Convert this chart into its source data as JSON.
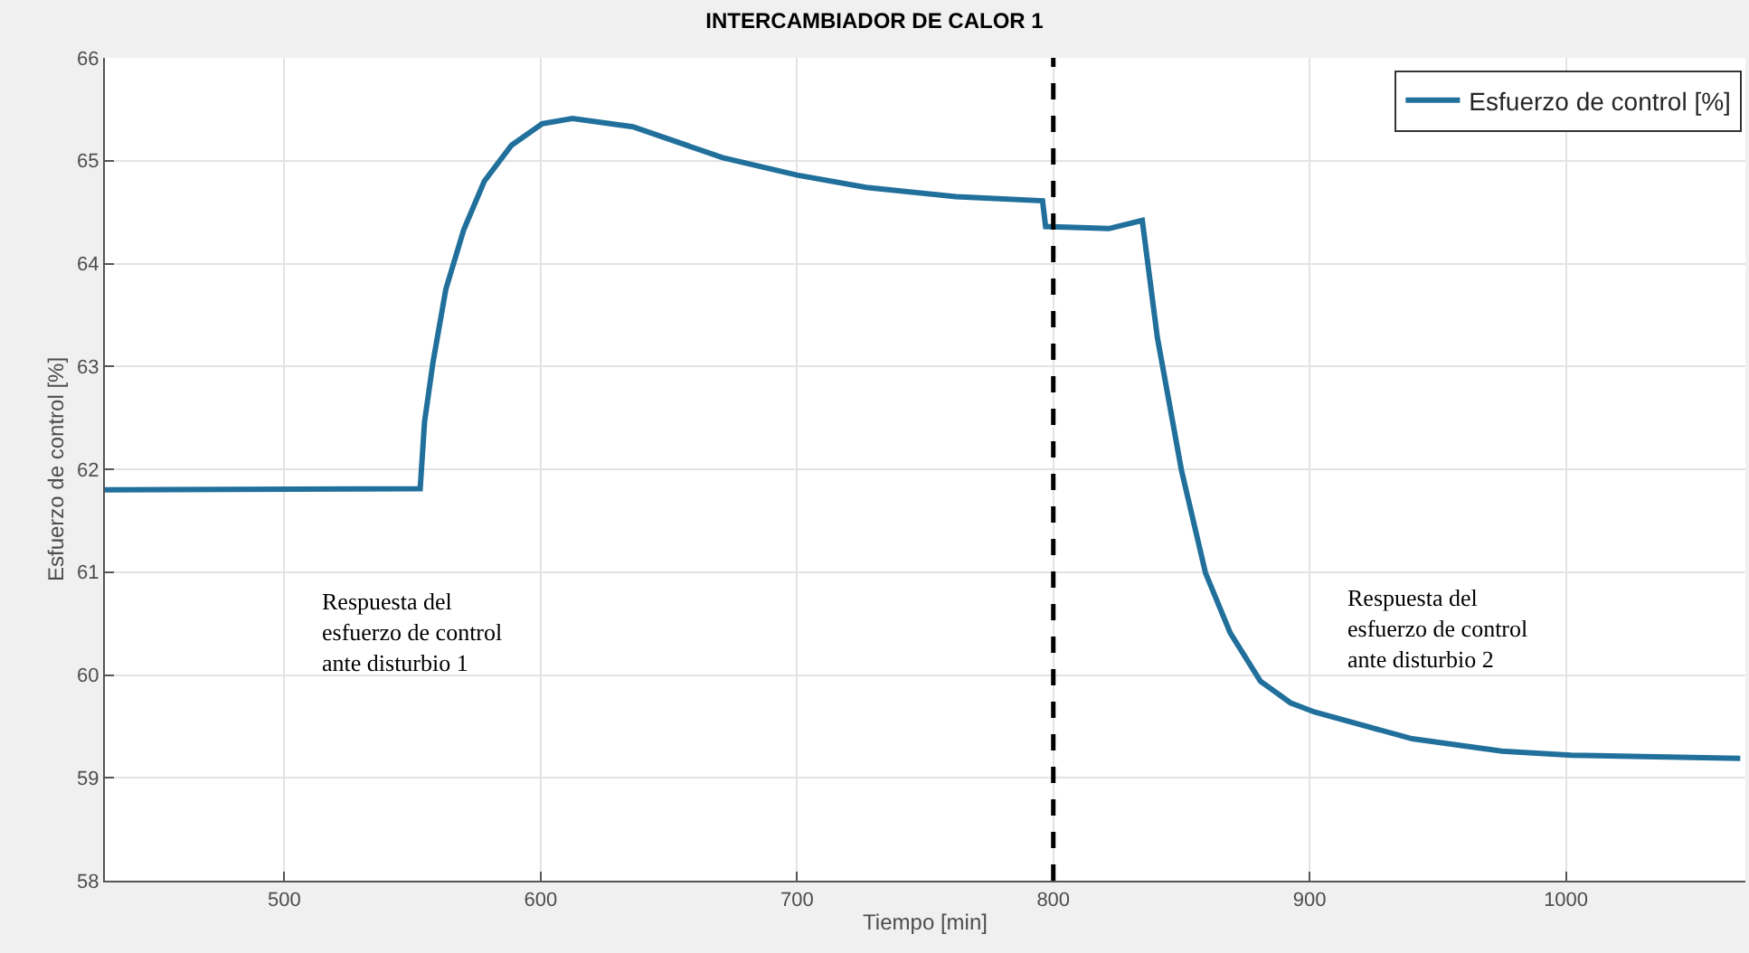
{
  "chart_data": {
    "type": "line",
    "title": "INTERCAMBIADOR DE CALOR 1",
    "xlabel": "Tiempo [min]",
    "ylabel": "Esfuerzo de control [%]",
    "x": [
      430,
      553,
      554.7,
      558,
      563,
      570,
      578,
      588.6,
      600.6,
      612.4,
      636,
      671,
      700,
      727,
      762,
      795.8,
      797,
      821.7,
      834.7,
      840.6,
      850,
      859.4,
      869,
      880.8,
      892.5,
      901.9,
      940,
      975,
      1002,
      1068
    ],
    "series": [
      {
        "name": "Esfuerzo de control [%]",
        "color": "#21709c",
        "values": [
          61.8,
          61.81,
          62.46,
          63.04,
          63.75,
          64.33,
          64.8,
          65.15,
          65.36,
          65.41,
          65.33,
          65.03,
          64.86,
          64.74,
          64.65,
          64.61,
          64.36,
          64.34,
          64.42,
          63.28,
          61.99,
          60.99,
          60.41,
          59.94,
          59.73,
          59.64,
          59.38,
          59.26,
          59.22,
          59.19
        ]
      }
    ],
    "xlim": [
      430,
      1070
    ],
    "xticks": [
      500,
      600,
      700,
      800,
      900,
      1000
    ],
    "ylim": [
      58,
      66
    ],
    "yticks": [
      58,
      59,
      60,
      61,
      62,
      63,
      64,
      65,
      66
    ],
    "grid": true,
    "legend": "top right",
    "marker": "none",
    "line_style": "solid",
    "ref_lines": [
      {
        "axis": "x",
        "value": 800,
        "color": "#000000",
        "line_style": "dashed"
      }
    ],
    "annotations": [
      "Respuesta del\nesfuerzo de control\nante disturbio 1",
      "Respuesta del\nesfuerzo de control\nante disturbio 2"
    ]
  }
}
